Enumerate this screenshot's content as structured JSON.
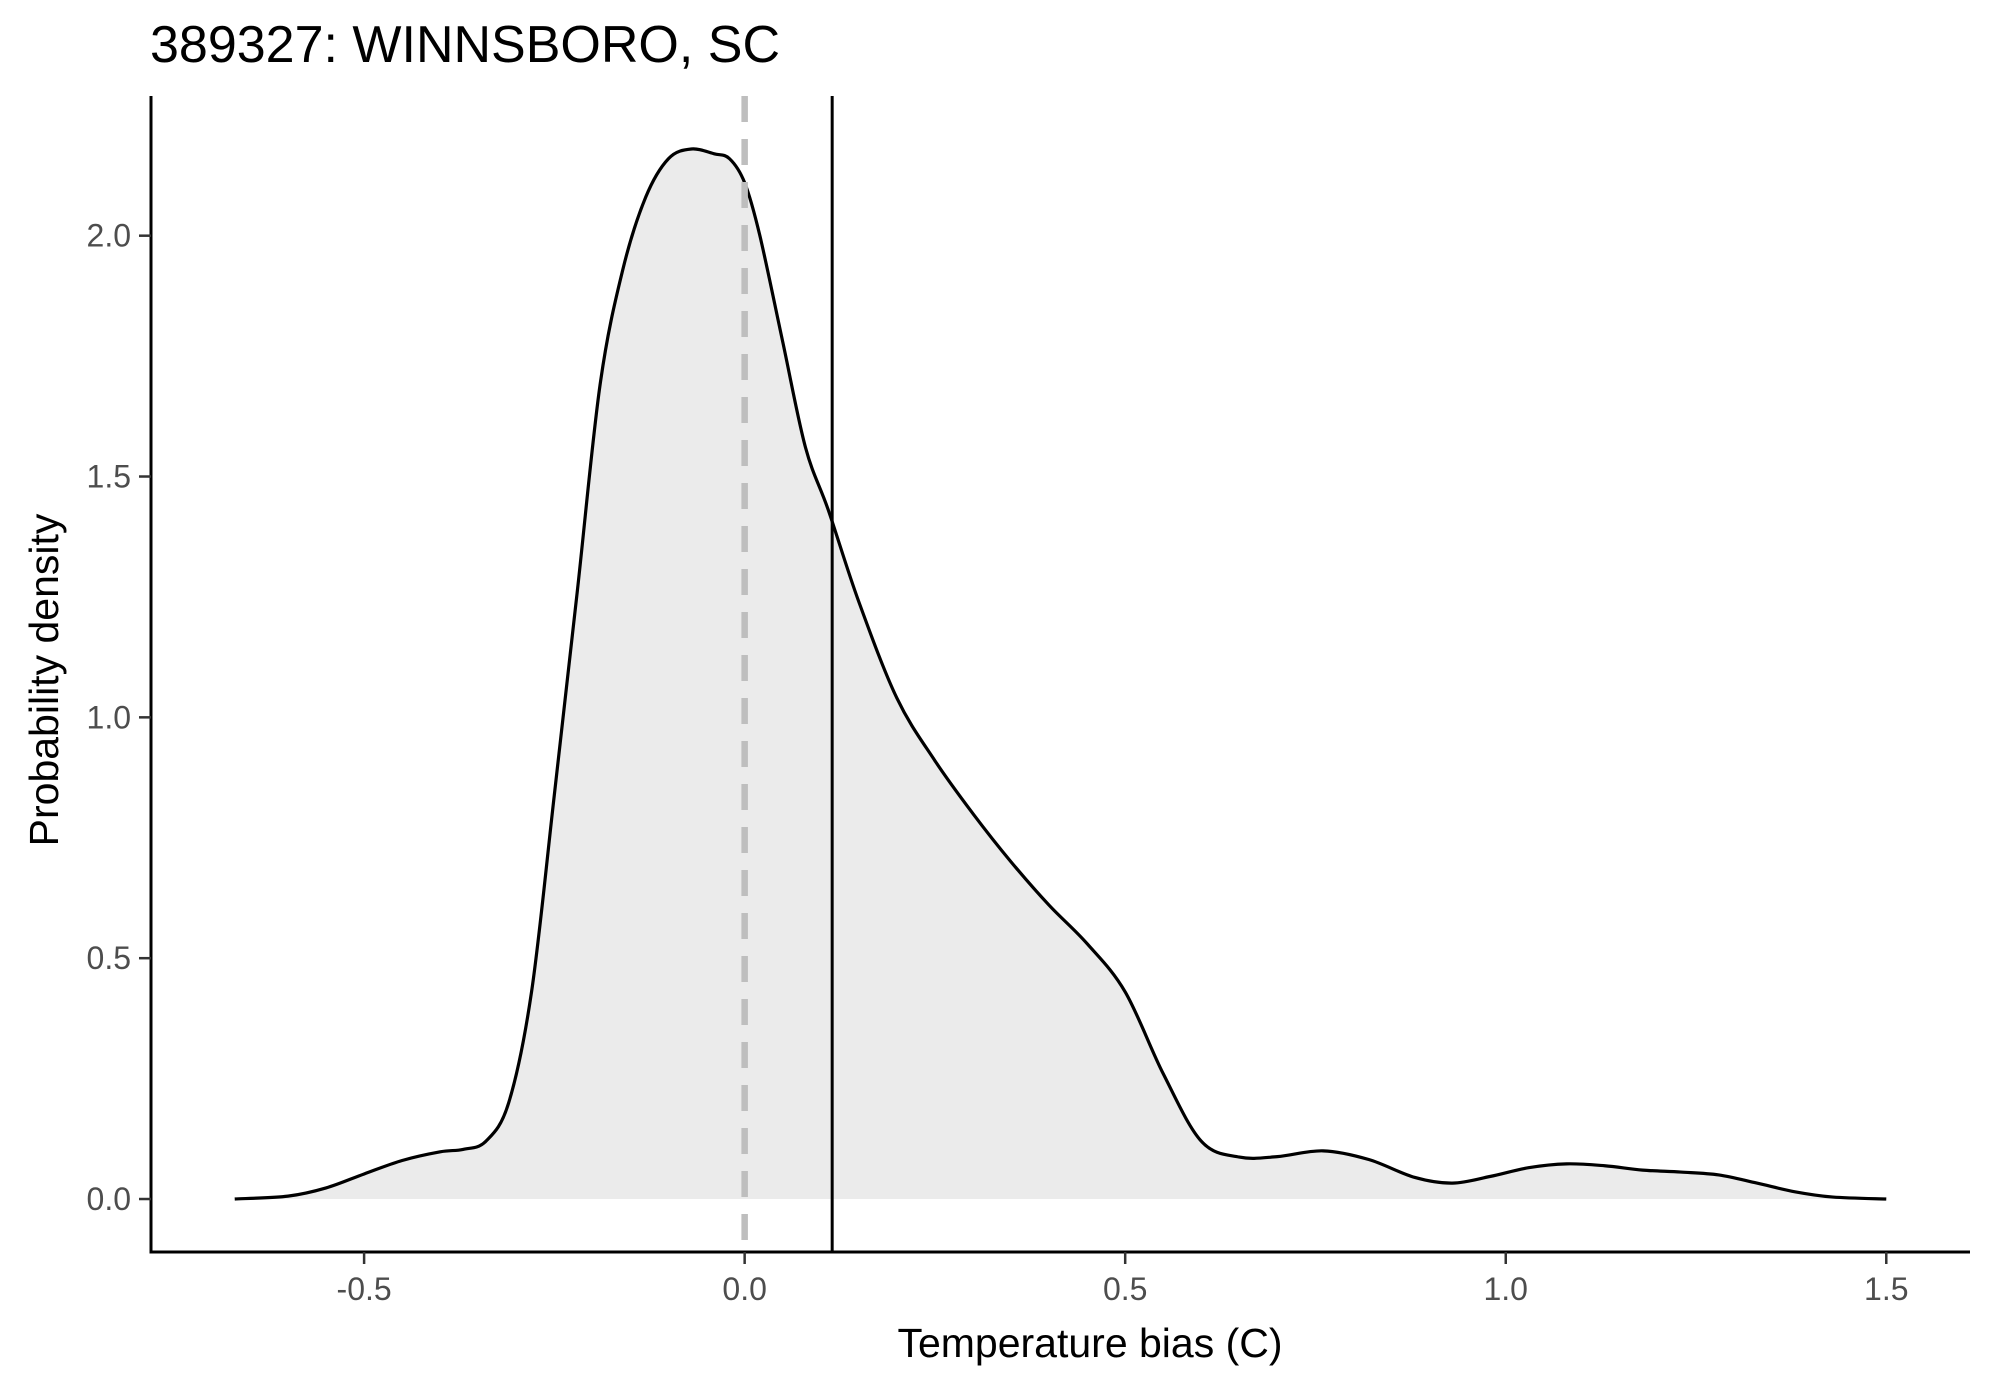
{
  "chart_data": {
    "type": "area",
    "title": "389327: WINNSBORO, SC",
    "xlabel": "Temperature bias (C)",
    "ylabel": "Probability density",
    "xlim": [
      -0.78,
      1.61
    ],
    "ylim": [
      -0.11,
      2.29
    ],
    "x_ticks": [
      -0.5,
      0.0,
      0.5,
      1.0,
      1.5
    ],
    "x_tick_labels": [
      "-0.5",
      "0.0",
      "0.5",
      "1.0",
      "1.5"
    ],
    "y_ticks": [
      0.0,
      0.5,
      1.0,
      1.5,
      2.0
    ],
    "y_tick_labels": [
      "0.0",
      "0.5",
      "1.0",
      "1.5",
      "2.0"
    ],
    "grid": false,
    "reference_lines": [
      {
        "kind": "zero",
        "x": 0.0,
        "style": "dashed",
        "color": "#bebebe"
      },
      {
        "kind": "mean",
        "x": 0.115,
        "style": "solid",
        "color": "#000000"
      }
    ],
    "series": [
      {
        "fill": "#ebebeb",
        "line_color": "#000000",
        "x": [
          -0.67,
          -0.6,
          -0.55,
          -0.5,
          -0.45,
          -0.4,
          -0.37,
          -0.34,
          -0.31,
          -0.28,
          -0.25,
          -0.22,
          -0.19,
          -0.16,
          -0.13,
          -0.1,
          -0.07,
          -0.04,
          -0.02,
          0.0,
          0.02,
          0.05,
          0.08,
          0.11,
          0.15,
          0.2,
          0.25,
          0.3,
          0.35,
          0.4,
          0.45,
          0.5,
          0.55,
          0.6,
          0.65,
          0.7,
          0.76,
          0.82,
          0.88,
          0.93,
          0.98,
          1.03,
          1.08,
          1.13,
          1.18,
          1.23,
          1.28,
          1.33,
          1.38,
          1.43,
          1.5
        ],
        "y": [
          0.0,
          0.006,
          0.023,
          0.052,
          0.08,
          0.098,
          0.103,
          0.12,
          0.2,
          0.43,
          0.84,
          1.26,
          1.69,
          1.93,
          2.08,
          2.16,
          2.18,
          2.17,
          2.16,
          2.11,
          2.0,
          1.78,
          1.56,
          1.43,
          1.24,
          1.04,
          0.91,
          0.8,
          0.7,
          0.61,
          0.53,
          0.43,
          0.26,
          0.12,
          0.087,
          0.088,
          0.1,
          0.082,
          0.045,
          0.033,
          0.047,
          0.065,
          0.073,
          0.069,
          0.06,
          0.056,
          0.05,
          0.033,
          0.015,
          0.004,
          0.0
        ]
      }
    ]
  }
}
